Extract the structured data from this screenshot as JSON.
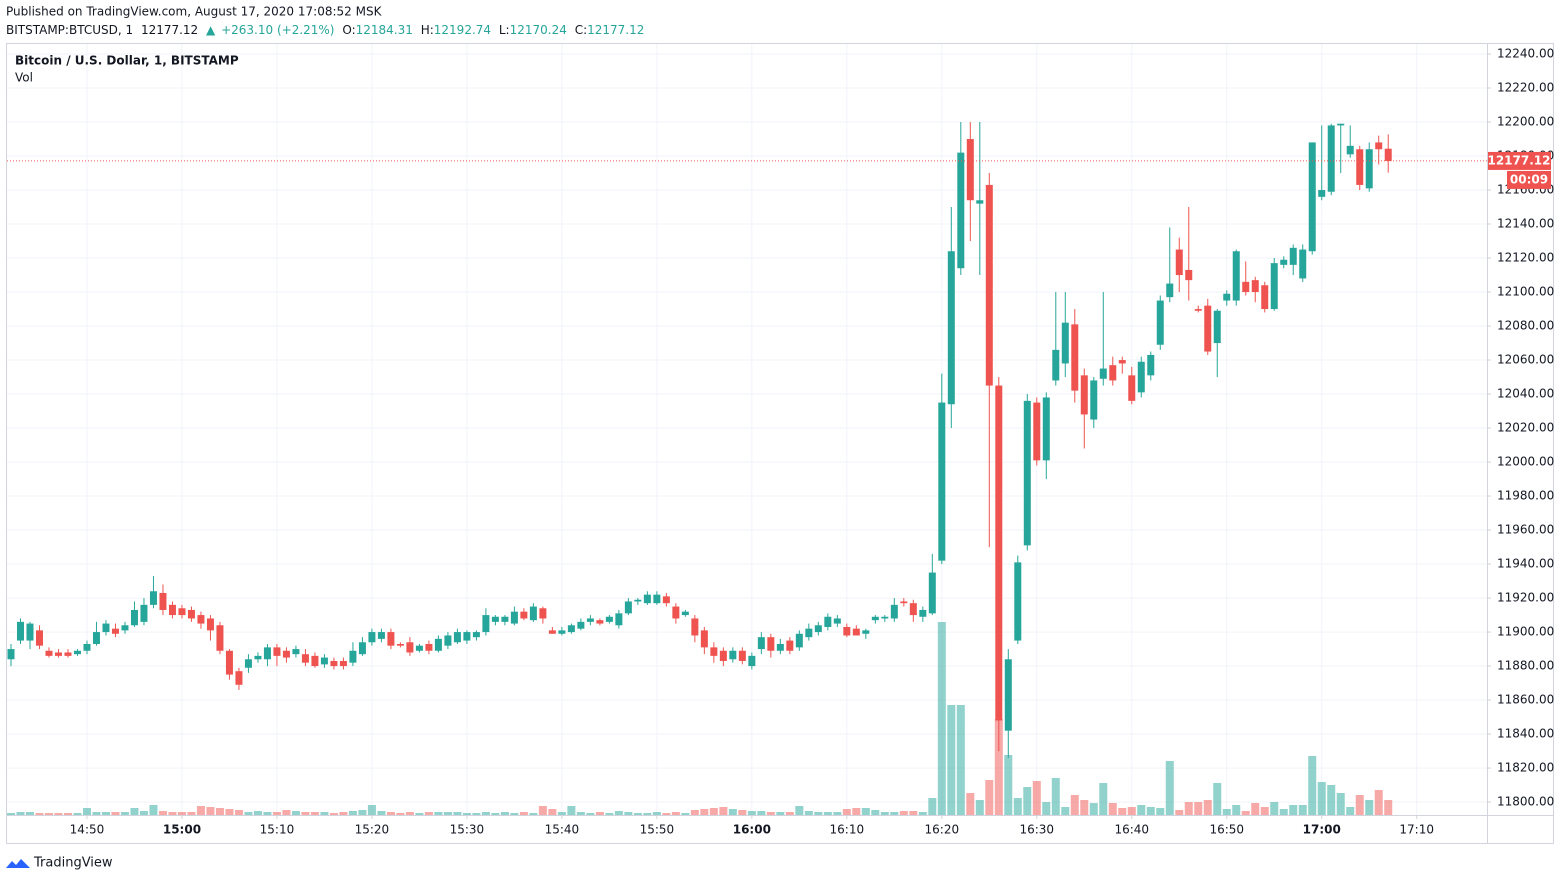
{
  "header": {
    "published": "Published on TradingView.com, August 17, 2020 17:08:52 MSK",
    "symbol": "BITSTAMP:BTCUSD, 1",
    "arrow": "▲",
    "change": "+263.10 (+2.21%)",
    "o_label": "O:",
    "h_label": "H:",
    "l_label": "L:",
    "c_label": "C:"
  },
  "legend": {
    "title": "Bitcoin / U.S. Dollar, 1, BITSTAMP",
    "volume": "Vol"
  },
  "countdown": "00:09",
  "footer": {
    "brand": "TradingView"
  },
  "chart_data": {
    "type": "candlestick",
    "up_color": "#26a69a",
    "down_color": "#ef5350",
    "grid": true,
    "xlim": [
      -0.42,
      155.4
    ],
    "ylim": [
      11792.4,
      12245.9
    ],
    "xticks": [
      {
        "value": 8,
        "label": "14:50"
      },
      {
        "value": 18,
        "label": "15:00"
      },
      {
        "value": 28,
        "label": "15:10"
      },
      {
        "value": 38,
        "label": "15:20"
      },
      {
        "value": 48,
        "label": "15:30"
      },
      {
        "value": 58,
        "label": "15:40"
      },
      {
        "value": 68,
        "label": "15:50"
      },
      {
        "value": 78,
        "label": "16:00"
      },
      {
        "value": 88,
        "label": "16:10"
      },
      {
        "value": 98,
        "label": "16:20"
      },
      {
        "value": 108,
        "label": "16:30"
      },
      {
        "value": 118,
        "label": "16:40"
      },
      {
        "value": 128,
        "label": "16:50"
      },
      {
        "value": 138,
        "label": "17:00"
      },
      {
        "value": 148,
        "label": "17:10"
      }
    ],
    "yticks": [
      {
        "value": 11800,
        "label": "11800.00"
      },
      {
        "value": 11820,
        "label": "11820.00"
      },
      {
        "value": 11840,
        "label": "11840.00"
      },
      {
        "value": 11860,
        "label": "11860.00"
      },
      {
        "value": 11880,
        "label": "11880.00"
      },
      {
        "value": 11900,
        "label": "11900.00"
      },
      {
        "value": 11920,
        "label": "11920.00"
      },
      {
        "value": 11940,
        "label": "11940.00"
      },
      {
        "value": 11960,
        "label": "11960.00"
      },
      {
        "value": 11980,
        "label": "11980.00"
      },
      {
        "value": 12000,
        "label": "12000.00"
      },
      {
        "value": 12020,
        "label": "12020.00"
      },
      {
        "value": 12040,
        "label": "12040.00"
      },
      {
        "value": 12060,
        "label": "12060.00"
      },
      {
        "value": 12080,
        "label": "12080.00"
      },
      {
        "value": 12100,
        "label": "12100.00"
      },
      {
        "value": 12120,
        "label": "12120.00"
      },
      {
        "value": 12140,
        "label": "12140.00"
      },
      {
        "value": 12160,
        "label": "12160.00"
      },
      {
        "value": 12180,
        "label": "12180.00"
      },
      {
        "value": 12200,
        "label": "12200.00"
      },
      {
        "value": 12220,
        "label": "12220.00"
      },
      {
        "value": 12240,
        "label": "12240.00"
      }
    ],
    "ohlc": [
      [
        11884,
        11893,
        11880,
        11890
      ],
      [
        11895,
        11908,
        11893,
        11906
      ],
      [
        11895,
        11906,
        11890,
        11905
      ],
      [
        11901,
        11904,
        11890,
        11892
      ],
      [
        11889,
        11891,
        11885,
        11886
      ],
      [
        11888,
        11890,
        11885,
        11886
      ],
      [
        11888,
        11890,
        11885,
        11886
      ],
      [
        11887,
        11890,
        11886,
        11889
      ],
      [
        11889,
        11895,
        11887,
        11893
      ],
      [
        11893,
        11906,
        11892,
        11900
      ],
      [
        11900,
        11907,
        11898,
        11905
      ],
      [
        11902,
        11905,
        11897,
        11899
      ],
      [
        11901,
        11906,
        11899,
        11904
      ],
      [
        11904,
        11918,
        11903,
        11913
      ],
      [
        11906,
        11920,
        11904,
        11916
      ],
      [
        11916,
        11933,
        11914,
        11924
      ],
      [
        11923,
        11928,
        11910,
        11913
      ],
      [
        11916,
        11918,
        11908,
        11910
      ],
      [
        11914,
        11916,
        11908,
        11910
      ],
      [
        11913,
        11915,
        11906,
        11908
      ],
      [
        11910,
        11912,
        11902,
        11905
      ],
      [
        11908,
        11910,
        11895,
        11901
      ],
      [
        11904,
        11906,
        11887,
        11889
      ],
      [
        11889,
        11890,
        11872,
        11875
      ],
      [
        11877,
        11879,
        11866,
        11869
      ],
      [
        11879,
        11887,
        11876,
        11884
      ],
      [
        11884,
        11888,
        11882,
        11886
      ],
      [
        11884,
        11893,
        11880,
        11891
      ],
      [
        11891,
        11893,
        11880,
        11886
      ],
      [
        11889,
        11891,
        11882,
        11885
      ],
      [
        11887,
        11892,
        11885,
        11890
      ],
      [
        11887,
        11890,
        11880,
        11882
      ],
      [
        11886,
        11888,
        11879,
        11880
      ],
      [
        11881,
        11887,
        11879,
        11885
      ],
      [
        11883,
        11885,
        11878,
        11880
      ],
      [
        11883,
        11885,
        11878,
        11880
      ],
      [
        11882,
        11894,
        11880,
        11889
      ],
      [
        11887,
        11897,
        11886,
        11894
      ],
      [
        11894,
        11902,
        11892,
        11900
      ],
      [
        11896,
        11902,
        11894,
        11900
      ],
      [
        11900,
        11902,
        11890,
        11892
      ],
      [
        11893,
        11894,
        11891,
        11892
      ],
      [
        11894,
        11897,
        11886,
        11888
      ],
      [
        11889,
        11893,
        11888,
        11892
      ],
      [
        11893,
        11895,
        11887,
        11889
      ],
      [
        11889,
        11898,
        11888,
        11896
      ],
      [
        11892,
        11900,
        11890,
        11898
      ],
      [
        11894,
        11902,
        11893,
        11900
      ],
      [
        11895,
        11901,
        11893,
        11900
      ],
      [
        11897,
        11901,
        11895,
        11900
      ],
      [
        11900,
        11914,
        11898,
        11910
      ],
      [
        11906,
        11910,
        11904,
        11909
      ],
      [
        11906,
        11910,
        11904,
        11909
      ],
      [
        11905,
        11915,
        11904,
        11912
      ],
      [
        11912,
        11914,
        11907,
        11908
      ],
      [
        11907,
        11917,
        11906,
        11915
      ],
      [
        11914,
        11915,
        11905,
        11908
      ],
      [
        11901,
        11903,
        11899,
        11899
      ],
      [
        11899,
        11903,
        11898,
        11901
      ],
      [
        11900,
        11905,
        11899,
        11904
      ],
      [
        11902,
        11908,
        11901,
        11906
      ],
      [
        11906,
        11910,
        11904,
        11908
      ],
      [
        11907,
        11908,
        11904,
        11905
      ],
      [
        11906,
        11910,
        11905,
        11909
      ],
      [
        11904,
        11913,
        11902,
        11911
      ],
      [
        11911,
        11920,
        11910,
        11918
      ],
      [
        11918,
        11920,
        11916,
        11919
      ],
      [
        11917,
        11924,
        11916,
        11922
      ],
      [
        11917,
        11924,
        11916,
        11922
      ],
      [
        11921,
        11923,
        11915,
        11917
      ],
      [
        11915,
        11917,
        11905,
        11908
      ],
      [
        11910,
        11913,
        11909,
        11912
      ],
      [
        11908,
        11910,
        11894,
        11898
      ],
      [
        11901,
        11903,
        11887,
        11891
      ],
      [
        11891,
        11894,
        11882,
        11886
      ],
      [
        11889,
        11891,
        11880,
        11883
      ],
      [
        11884,
        11891,
        11882,
        11889
      ],
      [
        11889,
        11891,
        11881,
        11883
      ],
      [
        11880,
        11888,
        11878,
        11886
      ],
      [
        11890,
        11900,
        11887,
        11897
      ],
      [
        11897,
        11899,
        11885,
        11889
      ],
      [
        11889,
        11896,
        11887,
        11893
      ],
      [
        11895,
        11897,
        11887,
        11889
      ],
      [
        11891,
        11901,
        11889,
        11899
      ],
      [
        11897,
        11905,
        11895,
        11902
      ],
      [
        11900,
        11906,
        11898,
        11904
      ],
      [
        11903,
        11911,
        11901,
        11909
      ],
      [
        11905,
        11910,
        11903,
        11908
      ],
      [
        11903,
        11905,
        11897,
        11898
      ],
      [
        11902,
        11904,
        11898,
        11898
      ],
      [
        11899,
        11902,
        11896,
        11901
      ],
      [
        11907,
        11910,
        11905,
        11909
      ],
      [
        11908,
        11910,
        11906,
        11909
      ],
      [
        11908,
        11920,
        11906,
        11916
      ],
      [
        11918,
        11920,
        11915,
        11917
      ],
      [
        11917,
        11919,
        11906,
        11910
      ],
      [
        11909,
        11915,
        11906,
        11913
      ],
      [
        11911,
        11946,
        11910,
        11935
      ],
      [
        11942,
        12052,
        11940,
        12035
      ],
      [
        12034,
        12150,
        12020,
        12124
      ],
      [
        12114,
        12200,
        12110,
        12182
      ],
      [
        12190,
        12200,
        12130,
        12154
      ],
      [
        12152,
        12200,
        12110,
        12154
      ],
      [
        12163,
        12170,
        11950,
        12045
      ],
      [
        12045,
        12050,
        11830,
        11848
      ],
      [
        11842,
        11890,
        11826,
        11884
      ],
      [
        11895,
        11945,
        11893,
        11941
      ],
      [
        11951,
        12040,
        11948,
        12036
      ],
      [
        12035,
        12038,
        11998,
        12001
      ],
      [
        12001,
        12041,
        11990,
        12038
      ],
      [
        12048,
        12100,
        12045,
        12066
      ],
      [
        12058,
        12100,
        12050,
        12082
      ],
      [
        12081,
        12090,
        12035,
        12042
      ],
      [
        12051,
        12055,
        12008,
        12028
      ],
      [
        12025,
        12050,
        12020,
        12048
      ],
      [
        12049,
        12100,
        12045,
        12055
      ],
      [
        12057,
        12062,
        12045,
        12048
      ],
      [
        12060,
        12062,
        12052,
        12058
      ],
      [
        12051,
        12056,
        12034,
        12036
      ],
      [
        12041,
        12062,
        12038,
        12059
      ],
      [
        12051,
        12065,
        12048,
        12063
      ],
      [
        12069,
        12098,
        12066,
        12095
      ],
      [
        12097,
        12138,
        12094,
        12105
      ],
      [
        12125,
        12132,
        12100,
        12110
      ],
      [
        12113,
        12150,
        12095,
        12107
      ],
      [
        12090,
        12092,
        12088,
        12089
      ],
      [
        12092,
        12096,
        12063,
        12065
      ],
      [
        12070,
        12090,
        12050,
        12089
      ],
      [
        12095,
        12101,
        12092,
        12099
      ],
      [
        12095,
        12125,
        12092,
        12124
      ],
      [
        12106,
        12118,
        12098,
        12100
      ],
      [
        12107,
        12109,
        12094,
        12100
      ],
      [
        12104,
        12106,
        12088,
        12090
      ],
      [
        12090,
        12120,
        12089,
        12117
      ],
      [
        12116,
        12121,
        12114,
        12119
      ],
      [
        12116,
        12128,
        12110,
        12126
      ],
      [
        12108,
        12128,
        12106,
        12125
      ],
      [
        12124,
        12188,
        12122,
        12188
      ],
      [
        12156,
        12198,
        12154,
        12160
      ],
      [
        12159,
        12199,
        12157,
        12198
      ],
      [
        12198,
        12199,
        12170,
        12199
      ],
      [
        12181,
        12198,
        12179,
        12186
      ],
      [
        12184,
        12186,
        12160,
        12163
      ],
      [
        12161,
        12188,
        12159,
        12184
      ],
      [
        12188,
        12192,
        12175,
        12184
      ],
      [
        12184.31,
        12192.74,
        12170.24,
        12177.12
      ]
    ],
    "volume": [
      2,
      3,
      3,
      2,
      2,
      2,
      2,
      2,
      7,
      3,
      3,
      3,
      3,
      7,
      4,
      10,
      4,
      3,
      3,
      3,
      9,
      8,
      7,
      6,
      5,
      3,
      4,
      3,
      3,
      5,
      4,
      3,
      3,
      3,
      2,
      3,
      4,
      5,
      10,
      4,
      3,
      2,
      3,
      2,
      3,
      3,
      3,
      3,
      2,
      2,
      3,
      2,
      3,
      2,
      3,
      2,
      9,
      6,
      3,
      9,
      3,
      2,
      3,
      2,
      4,
      3,
      2,
      2,
      3,
      2,
      3,
      2,
      5,
      6,
      7,
      8,
      6,
      5,
      4,
      4,
      3,
      3,
      3,
      9,
      4,
      3,
      3,
      3,
      6,
      7,
      7,
      5,
      3,
      3,
      4,
      4,
      3,
      17,
      193,
      110,
      110,
      22,
      15,
      35,
      96,
      60,
      17,
      28,
      34,
      13,
      37,
      8,
      20,
      15,
      12,
      32,
      12,
      7,
      8,
      10,
      8,
      7,
      54,
      5,
      13,
      13,
      15,
      32,
      6,
      10,
      4,
      12,
      8,
      13,
      6,
      10,
      10,
      59,
      33,
      30,
      22,
      8,
      20,
      15,
      25,
      15
    ]
  }
}
